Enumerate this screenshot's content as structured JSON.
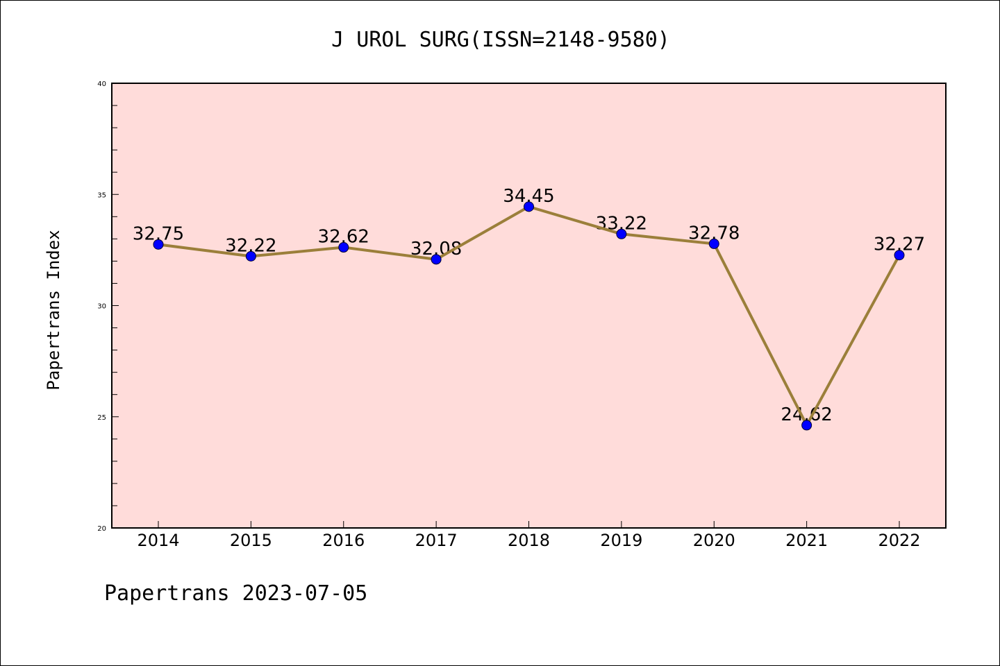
{
  "chart_data": {
    "type": "line",
    "title": "J UROL SURG(ISSN=2148-9580)",
    "ylabel": "Papertrans Index",
    "xlabel": "",
    "categories": [
      "2014",
      "2015",
      "2016",
      "2017",
      "2018",
      "2019",
      "2020",
      "2021",
      "2022"
    ],
    "series": [
      {
        "values": [
          32.75,
          32.22,
          32.62,
          32.08,
          34.45,
          33.22,
          32.78,
          24.62,
          32.27
        ],
        "data_labels": [
          "32.75",
          "32.22",
          "32.62",
          "32.08",
          "34.45",
          "33.22",
          "32.78",
          "24.62",
          "32.27"
        ]
      }
    ],
    "ylim": [
      20,
      40
    ],
    "yticks": [
      20,
      25,
      30,
      35,
      40
    ],
    "ytick_labels": [
      "20",
      "25",
      "30",
      "35",
      "40"
    ],
    "grid": false,
    "colors": {
      "plot_background": "#ffdcda",
      "line": "#9b7f3a",
      "marker": "#0000ff"
    }
  },
  "footer": {
    "text": "Papertrans 2023-07-05"
  }
}
